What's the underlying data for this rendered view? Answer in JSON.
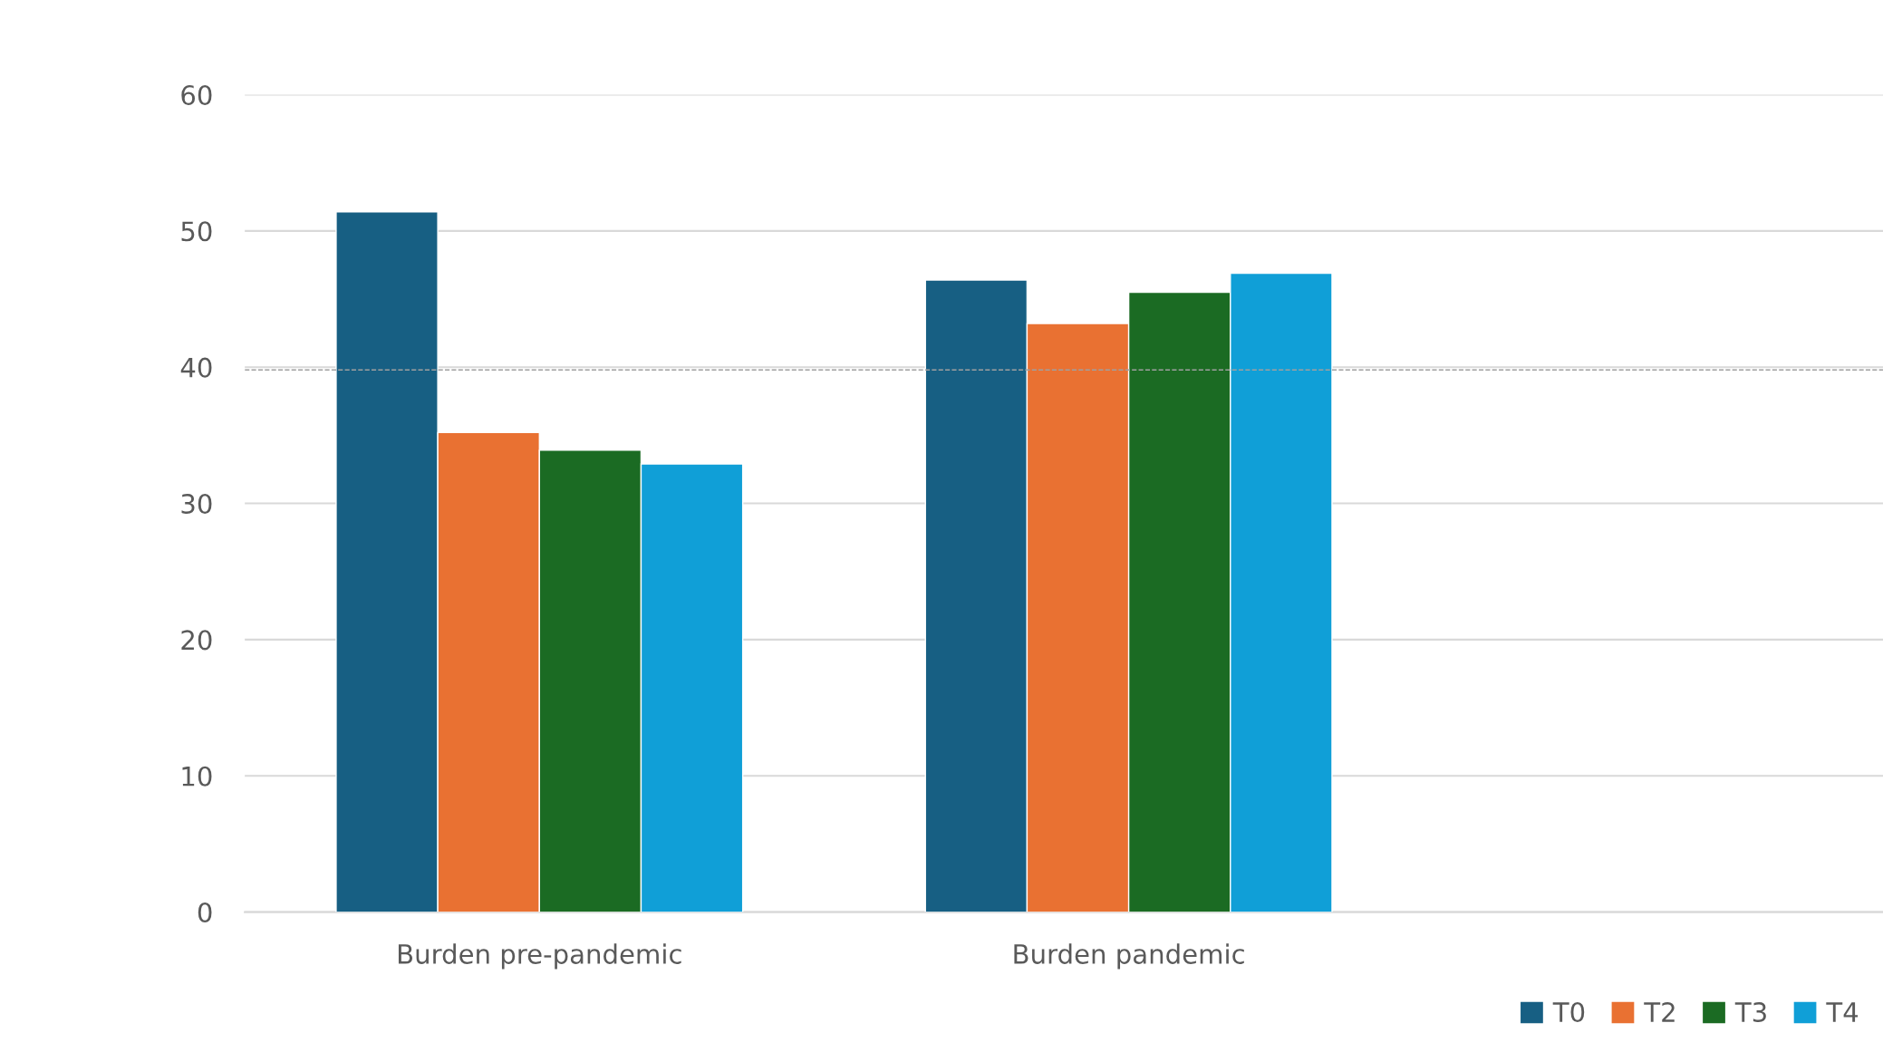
{
  "chart_data": {
    "type": "bar",
    "categories": [
      "Burden pre-pandemic",
      "Burden pandemic"
    ],
    "series": [
      {
        "name": "T0",
        "color": "#175f83",
        "values": [
          51.4,
          46.4
        ]
      },
      {
        "name": "T2",
        "color": "#e97132",
        "values": [
          35.2,
          43.2
        ]
      },
      {
        "name": "T3",
        "color": "#1b6b23",
        "values": [
          33.9,
          45.5
        ]
      },
      {
        "name": "T4",
        "color": "#109fd7",
        "values": [
          32.9,
          46.9
        ]
      }
    ],
    "ylim": [
      0,
      60
    ],
    "yticks": [
      0,
      10,
      20,
      30,
      40,
      50,
      60
    ],
    "grid": "y",
    "legend": "bottom right",
    "ref_lines": [
      {
        "axis": "y",
        "value": 39.8,
        "color": "#a0a0a0",
        "line_style": "dashed"
      }
    ]
  }
}
